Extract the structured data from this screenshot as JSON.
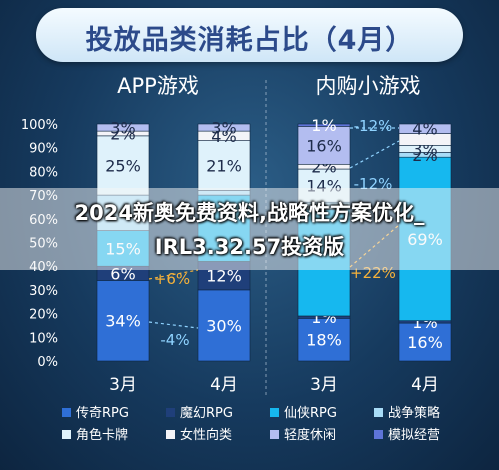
{
  "header": {
    "title": "投放品类消耗占比（4月）"
  },
  "chart_data": [
    {
      "type": "bar",
      "stacked": true,
      "title": "APP游戏",
      "categories": [
        "3月",
        "4月"
      ],
      "ylim": [
        0,
        100
      ],
      "yticks": [
        "0%",
        "10%",
        "20%",
        "30%",
        "40%",
        "50%",
        "60%",
        "70%",
        "80%",
        "90%",
        "100%"
      ],
      "series": [
        {
          "name": "传奇RPG",
          "color": "#2f6fd6",
          "values": [
            34,
            30
          ],
          "labels": [
            "34%",
            "30%"
          ]
        },
        {
          "name": "魔幻RPG",
          "color": "#1f3f7a",
          "values": [
            6,
            12
          ],
          "labels": [
            "6%",
            "12%"
          ]
        },
        {
          "name": "仙侠RPG",
          "color": "#16b8ef",
          "values": [
            15,
            28
          ],
          "labels": [
            "15%",
            ""
          ]
        },
        {
          "name": "战争策略",
          "color": "#a8dcf7",
          "values": [
            15,
            2
          ],
          "labels": [
            "",
            ""
          ]
        },
        {
          "name": "角色卡牌",
          "color": "#dff2fb",
          "values": [
            25,
            21
          ],
          "labels": [
            "25%",
            "21%"
          ]
        },
        {
          "name": "女性向类",
          "color": "#f4f4f8",
          "values": [
            2,
            4
          ],
          "labels": [
            "2%",
            "4%"
          ]
        },
        {
          "name": "轻度休闲",
          "color": "#b3bdf0",
          "values": [
            3,
            3
          ],
          "labels": [
            "3%",
            "3%"
          ]
        }
      ],
      "annotations": [
        "+6%",
        "-4%"
      ]
    },
    {
      "type": "bar",
      "stacked": true,
      "title": "内购小游戏",
      "categories": [
        "3月",
        "4月"
      ],
      "ylim": [
        0,
        100
      ],
      "series": [
        {
          "name": "传奇RPG",
          "color": "#2f6fd6",
          "values": [
            18,
            16
          ],
          "labels": [
            "18%",
            "16%"
          ]
        },
        {
          "name": "魔幻RPG",
          "color": "#1f3f7a",
          "values": [
            1,
            1
          ],
          "labels": [
            "1%",
            "1%"
          ]
        },
        {
          "name": "仙侠RPG",
          "color": "#16b8ef",
          "values": [
            45,
            69
          ],
          "labels": [
            "",
            "69%"
          ]
        },
        {
          "name": "战争策略",
          "color": "#a8dcf7",
          "values": [
            3,
            2
          ],
          "labels": [
            "",
            "2%"
          ]
        },
        {
          "name": "角色卡牌",
          "color": "#dff2fb",
          "values": [
            14,
            3
          ],
          "labels": [
            "14%",
            "3%"
          ]
        },
        {
          "name": "女性向类",
          "color": "#f4f4f8",
          "values": [
            2,
            5
          ],
          "labels": [
            "2%",
            ""
          ]
        },
        {
          "name": "轻度休闲",
          "color": "#b3bdf0",
          "values": [
            16,
            4
          ],
          "labels": [
            "16%",
            "4%"
          ]
        },
        {
          "name": "模拟经营",
          "color": "#5e74d8",
          "values": [
            1,
            0
          ],
          "labels": [
            "1%",
            ""
          ]
        }
      ],
      "annotations": [
        "-12%",
        "-12%",
        "+22%"
      ]
    }
  ],
  "legend": [
    {
      "name": "传奇RPG",
      "color": "#2f6fd6"
    },
    {
      "name": "魔幻RPG",
      "color": "#1f3f7a"
    },
    {
      "name": "仙侠RPG",
      "color": "#16b8ef"
    },
    {
      "name": "战争策略",
      "color": "#a8dcf7"
    },
    {
      "name": "角色卡牌",
      "color": "#dff2fb"
    },
    {
      "name": "女性向类",
      "color": "#f4f4f8"
    },
    {
      "name": "轻度休闲",
      "color": "#b3bdf0"
    },
    {
      "name": "模拟经营",
      "color": "#5e74d8"
    }
  ],
  "overlay": {
    "line1": "2024新奥免费资料,战略性方案优化_",
    "line2": "IRL3.32.57投资版"
  }
}
